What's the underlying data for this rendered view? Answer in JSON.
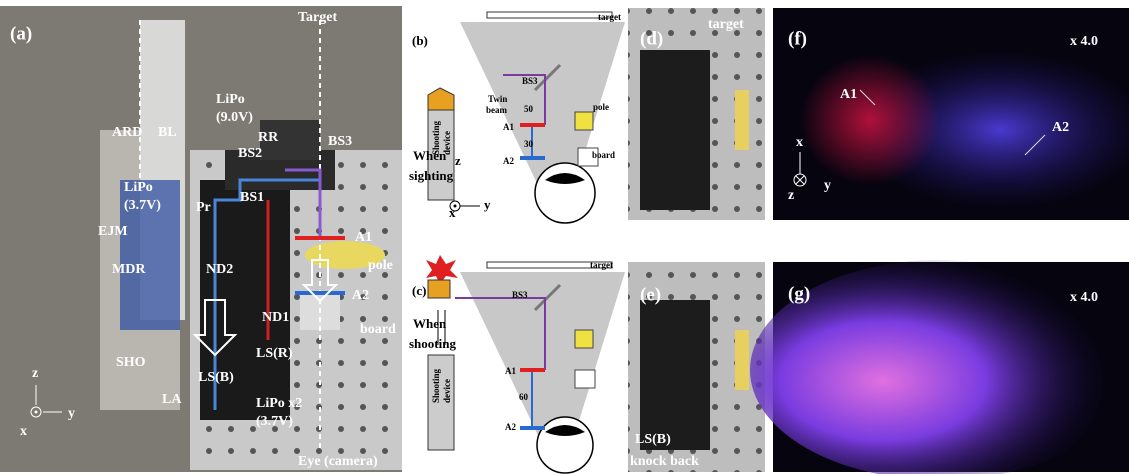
{
  "panel_a": {
    "label": "(a)",
    "annotations": [
      "Target",
      "ARD",
      "BL",
      "LiPo",
      "(9.0V)",
      "RR",
      "BS3",
      "BS2",
      "LiPo",
      "(3.7V)",
      "BS1",
      "Pr",
      "A1",
      "EJM",
      "MDR",
      "pole",
      "ND2",
      "A2",
      "board",
      "ND1",
      "SHO",
      "LS(B)",
      "LS(R)",
      "LA",
      "LiPo x2",
      "(3.7V)",
      "z",
      "x",
      "y",
      "Eye (camera)"
    ]
  },
  "panel_b": {
    "label": "(b)",
    "annotations": [
      "target",
      "BS3",
      "Twin",
      "beam",
      "50",
      "A1",
      "pole",
      "30",
      "A2",
      "board",
      "When",
      "sighting",
      "Shooting",
      "device",
      "z",
      "x",
      "y"
    ]
  },
  "panel_c": {
    "label": "(c)",
    "annotations": [
      "target",
      "BS3",
      "When",
      "shooting",
      "A1",
      "60",
      "A2",
      "Shooting",
      "device"
    ]
  },
  "panel_d": {
    "label": "(d)",
    "annotations": [
      "target"
    ]
  },
  "panel_e": {
    "label": "(e)",
    "annotations": [
      "LS(B)",
      "knock back"
    ]
  },
  "panel_f": {
    "label": "(f)",
    "annotations": [
      "x 4.0",
      "A1",
      "A2",
      "x",
      "z",
      "y"
    ]
  },
  "panel_g": {
    "label": "(g)",
    "annotations": [
      "x 4.0"
    ]
  }
}
